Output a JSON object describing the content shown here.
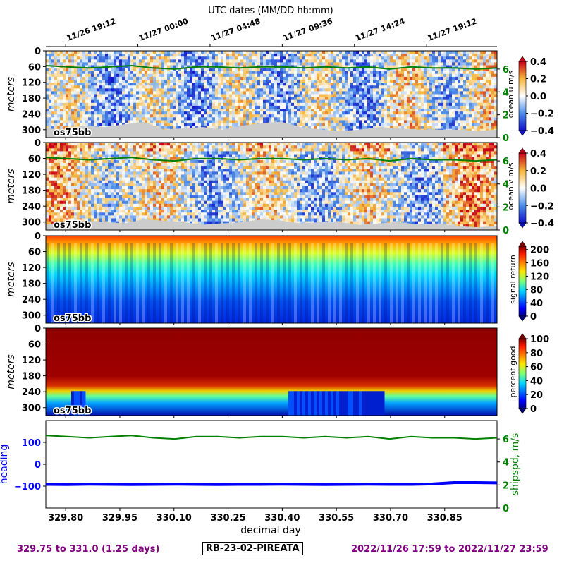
{
  "chart_data": {
    "type": "heatmap",
    "top_axis": {
      "label": "UTC dates (MM/DD hh:mm)",
      "ticks": [
        {
          "x": 329.8,
          "label": "11/26 19:12"
        },
        {
          "x": 330.0,
          "label": "11/27 00:00"
        },
        {
          "x": 330.2,
          "label": "11/27 04:48"
        },
        {
          "x": 330.4,
          "label": "11/27 09:36"
        },
        {
          "x": 330.6,
          "label": "11/27 14:24"
        },
        {
          "x": 330.8,
          "label": "11/27 19:12"
        }
      ]
    },
    "x_axis": {
      "label": "decimal day",
      "range": [
        329.745,
        330.995
      ],
      "ticks": [
        "329.80",
        "329.95",
        "330.10",
        "330.25",
        "330.40",
        "330.55",
        "330.70",
        "330.85"
      ],
      "tick_values": [
        329.8,
        329.95,
        330.1,
        330.25,
        330.4,
        330.55,
        330.7,
        330.85
      ]
    },
    "depth_axis": {
      "label": "meters",
      "range": [
        0,
        330
      ],
      "ticks": [
        "0",
        "60",
        "120",
        "180",
        "240",
        "300"
      ],
      "tick_values": [
        0,
        60,
        120,
        180,
        240,
        300
      ]
    },
    "panels": [
      {
        "id": "u",
        "instrument": "os75bb",
        "colorbar_label": "ocean u m/s",
        "colormap": "diverging",
        "colorbar_ticks": [
          "0.4",
          "0.2",
          "0.0",
          "−0.2",
          "−0.4"
        ],
        "colorbar_tick_values": [
          0.4,
          0.2,
          0.0,
          -0.2,
          -0.4
        ],
        "range": [
          -0.4,
          0.4
        ],
        "right_axis_ticks": [
          "6",
          "4",
          "2",
          "0"
        ],
        "right_axis_tick_values": [
          6,
          4,
          2,
          0
        ],
        "right_axis_range": [
          0,
          7.6
        ],
        "bottom_mask_depth_m": [
          295,
          300,
          285,
          290,
          280,
          270,
          300,
          295,
          290,
          300,
          285,
          275,
          270,
          290,
          300,
          305,
          300,
          290,
          295,
          300,
          300,
          300,
          305,
          300
        ]
      },
      {
        "id": "v",
        "instrument": "os75bb",
        "colorbar_label": "ocean v m/s",
        "colormap": "diverging",
        "colorbar_ticks": [
          "0.4",
          "0.2",
          "0.0",
          "−0.2",
          "−0.4"
        ],
        "colorbar_tick_values": [
          0.4,
          0.2,
          0.0,
          -0.2,
          -0.4
        ],
        "range": [
          -0.4,
          0.4
        ],
        "right_axis_ticks": [
          "6",
          "4",
          "2",
          "0"
        ],
        "right_axis_tick_values": [
          6,
          4,
          2,
          0
        ],
        "right_axis_range": [
          0,
          7.6
        ],
        "bottom_mask_depth_m": [
          310,
          300,
          295,
          300,
          305,
          290,
          295,
          300,
          310,
          305,
          300,
          290,
          295,
          305,
          300,
          300,
          310,
          305,
          300,
          310,
          305,
          315,
          320,
          315
        ]
      },
      {
        "id": "amp",
        "instrument": "os75bb",
        "colorbar_label": "signal return",
        "colormap": "jet",
        "colorbar_ticks": [
          "200",
          "160",
          "120",
          "80",
          "40",
          "0"
        ],
        "colorbar_tick_values": [
          200,
          160,
          120,
          80,
          40,
          0
        ],
        "range": [
          0,
          210
        ]
      },
      {
        "id": "pg",
        "instrument": "os75bb",
        "colorbar_label": "percent good",
        "colormap": "jet",
        "colorbar_ticks": [
          "100",
          "80",
          "60",
          "40",
          "20",
          "0"
        ],
        "colorbar_tick_values": [
          100,
          80,
          60,
          40,
          20,
          0
        ],
        "range": [
          0,
          100
        ]
      }
    ],
    "ship_panel": {
      "left_axis_label": "heading",
      "left_ticks": [
        "100",
        "0",
        "−100"
      ],
      "left_tick_values": [
        100,
        0,
        -100
      ],
      "left_range": [
        -200,
        200
      ],
      "right_axis_label": "shipspd, m/s",
      "right_ticks": [
        "6",
        "4",
        "2",
        "0"
      ],
      "right_tick_values": [
        6,
        4,
        2,
        0
      ],
      "right_range": [
        0,
        7.6
      ],
      "heading_deg": [
        -92,
        -93,
        -91,
        -92,
        -93,
        -92,
        -91,
        -92,
        -93,
        -92,
        -92,
        -91,
        -92,
        -93,
        -92,
        -91,
        -92,
        -92,
        -90,
        -84,
        -84,
        -85
      ],
      "shipspd_ms": [
        6.3,
        6.2,
        6.1,
        6.2,
        6.3,
        6.1,
        6.0,
        6.2,
        6.2,
        6.1,
        6.2,
        6.2,
        6.1,
        6.2,
        6.1,
        6.2,
        6.0,
        6.2,
        6.1,
        6.1,
        6.0,
        6.1
      ]
    },
    "colors": {
      "heading": "#0000ff",
      "shipspd": "#008000",
      "footer": "#800080",
      "mask": "#cccccc"
    }
  },
  "footer": {
    "left": "329.75 to 331.0 (1.25 days)",
    "center": "RB-23-02-PIREATA",
    "right": "2022/11/26 17:59 to 2022/11/27 23:59"
  }
}
